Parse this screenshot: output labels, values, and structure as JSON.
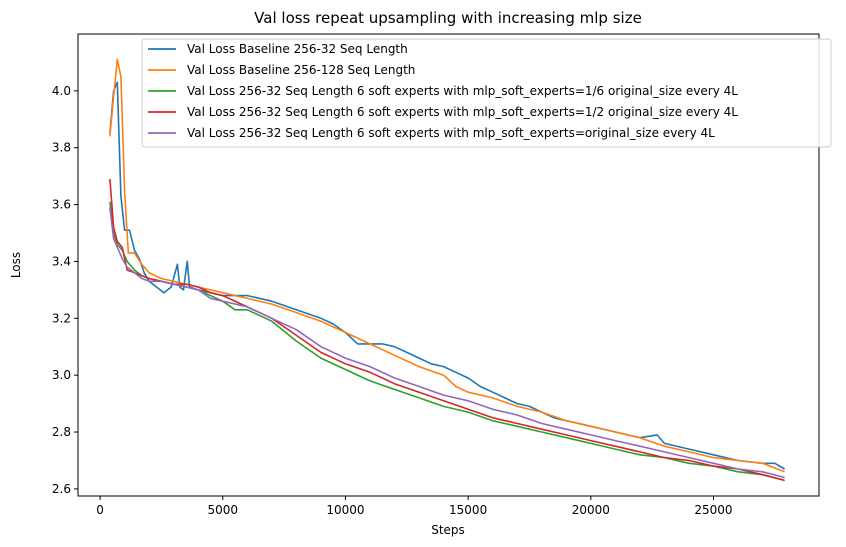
{
  "chart_data": {
    "type": "line",
    "title": "Val loss repeat upsampling with increasing mlp size",
    "xlabel": "Steps",
    "ylabel": "Loss",
    "xlim": [
      -900,
      29300
    ],
    "ylim": [
      2.575,
      4.2
    ],
    "xticks": [
      0,
      5000,
      10000,
      15000,
      20000,
      25000
    ],
    "yticks": [
      2.6,
      2.8,
      3.0,
      3.2,
      3.4,
      3.6,
      3.8,
      4.0
    ],
    "grid": false,
    "legend_position": "upper right",
    "series": [
      {
        "name": "Val Loss Baseline 256-32 Seq Length",
        "color": "#1f77b4",
        "points": [
          [
            400,
            3.85
          ],
          [
            550,
            4.0
          ],
          [
            700,
            4.03
          ],
          [
            850,
            3.63
          ],
          [
            1000,
            3.51
          ],
          [
            1200,
            3.51
          ],
          [
            1400,
            3.44
          ],
          [
            1600,
            3.41
          ],
          [
            1800,
            3.36
          ],
          [
            2000,
            3.33
          ],
          [
            2300,
            3.31
          ],
          [
            2600,
            3.29
          ],
          [
            2900,
            3.31
          ],
          [
            3150,
            3.39
          ],
          [
            3250,
            3.31
          ],
          [
            3400,
            3.3
          ],
          [
            3550,
            3.4
          ],
          [
            3650,
            3.31
          ],
          [
            4000,
            3.3
          ],
          [
            4500,
            3.29
          ],
          [
            5000,
            3.28
          ],
          [
            6000,
            3.28
          ],
          [
            7000,
            3.26
          ],
          [
            8000,
            3.23
          ],
          [
            9000,
            3.2
          ],
          [
            9500,
            3.18
          ],
          [
            10000,
            3.15
          ],
          [
            10500,
            3.11
          ],
          [
            11000,
            3.11
          ],
          [
            11500,
            3.11
          ],
          [
            12000,
            3.1
          ],
          [
            12500,
            3.08
          ],
          [
            13000,
            3.06
          ],
          [
            13500,
            3.04
          ],
          [
            14000,
            3.03
          ],
          [
            14500,
            3.01
          ],
          [
            15000,
            2.99
          ],
          [
            15500,
            2.96
          ],
          [
            16000,
            2.94
          ],
          [
            16500,
            2.92
          ],
          [
            17000,
            2.9
          ],
          [
            17500,
            2.89
          ],
          [
            18000,
            2.87
          ],
          [
            18500,
            2.85
          ],
          [
            19000,
            2.84
          ],
          [
            19500,
            2.83
          ],
          [
            20000,
            2.82
          ],
          [
            21000,
            2.8
          ],
          [
            22000,
            2.78
          ],
          [
            22700,
            2.79
          ],
          [
            23000,
            2.76
          ],
          [
            24000,
            2.74
          ],
          [
            25000,
            2.72
          ],
          [
            26000,
            2.7
          ],
          [
            27000,
            2.69
          ],
          [
            27500,
            2.69
          ],
          [
            27900,
            2.67
          ]
        ]
      },
      {
        "name": "Val Loss Baseline 256-128 Seq Length",
        "color": "#ff7f0e",
        "points": [
          [
            400,
            3.84
          ],
          [
            550,
            3.98
          ],
          [
            700,
            4.11
          ],
          [
            850,
            4.05
          ],
          [
            1000,
            3.65
          ],
          [
            1150,
            3.43
          ],
          [
            1400,
            3.43
          ],
          [
            1700,
            3.39
          ],
          [
            2000,
            3.36
          ],
          [
            2500,
            3.34
          ],
          [
            3000,
            3.33
          ],
          [
            3500,
            3.32
          ],
          [
            4000,
            3.31
          ],
          [
            4500,
            3.3
          ],
          [
            5000,
            3.29
          ],
          [
            6000,
            3.27
          ],
          [
            7000,
            3.25
          ],
          [
            8000,
            3.22
          ],
          [
            9000,
            3.19
          ],
          [
            10000,
            3.15
          ],
          [
            11000,
            3.11
          ],
          [
            12000,
            3.07
          ],
          [
            13000,
            3.03
          ],
          [
            14000,
            3.0
          ],
          [
            14500,
            2.96
          ],
          [
            15000,
            2.94
          ],
          [
            16000,
            2.92
          ],
          [
            17000,
            2.89
          ],
          [
            18000,
            2.87
          ],
          [
            19000,
            2.84
          ],
          [
            20000,
            2.82
          ],
          [
            21000,
            2.8
          ],
          [
            22000,
            2.78
          ],
          [
            23000,
            2.75
          ],
          [
            24000,
            2.73
          ],
          [
            25000,
            2.71
          ],
          [
            26000,
            2.7
          ],
          [
            27000,
            2.69
          ],
          [
            27900,
            2.66
          ]
        ]
      },
      {
        "name": "Val Loss 256-32 Seq Length 6 soft experts with mlp_soft_experts=1/6 original_size every 4L",
        "color": "#2ca02c",
        "points": [
          [
            400,
            3.61
          ],
          [
            550,
            3.5
          ],
          [
            700,
            3.46
          ],
          [
            900,
            3.44
          ],
          [
            1100,
            3.4
          ],
          [
            1400,
            3.37
          ],
          [
            1700,
            3.35
          ],
          [
            2000,
            3.34
          ],
          [
            2500,
            3.33
          ],
          [
            3000,
            3.32
          ],
          [
            3500,
            3.31
          ],
          [
            4000,
            3.3
          ],
          [
            4500,
            3.28
          ],
          [
            5000,
            3.26
          ],
          [
            5500,
            3.23
          ],
          [
            6000,
            3.23
          ],
          [
            7000,
            3.19
          ],
          [
            8000,
            3.12
          ],
          [
            9000,
            3.06
          ],
          [
            10000,
            3.02
          ],
          [
            11000,
            2.98
          ],
          [
            12000,
            2.95
          ],
          [
            13000,
            2.92
          ],
          [
            14000,
            2.89
          ],
          [
            15000,
            2.87
          ],
          [
            16000,
            2.84
          ],
          [
            17000,
            2.82
          ],
          [
            18000,
            2.8
          ],
          [
            19000,
            2.78
          ],
          [
            20000,
            2.76
          ],
          [
            21000,
            2.74
          ],
          [
            22000,
            2.72
          ],
          [
            23000,
            2.71
          ],
          [
            24000,
            2.69
          ],
          [
            25000,
            2.68
          ],
          [
            26000,
            2.66
          ],
          [
            27000,
            2.65
          ],
          [
            27900,
            2.63
          ]
        ]
      },
      {
        "name": "Val Loss 256-32 Seq Length 6 soft experts with mlp_soft_experts=1/2 original_size every 4L",
        "color": "#d62728",
        "points": [
          [
            400,
            3.69
          ],
          [
            550,
            3.52
          ],
          [
            700,
            3.47
          ],
          [
            900,
            3.45
          ],
          [
            1100,
            3.37
          ],
          [
            1400,
            3.36
          ],
          [
            1700,
            3.35
          ],
          [
            2000,
            3.34
          ],
          [
            2500,
            3.33
          ],
          [
            3000,
            3.32
          ],
          [
            3500,
            3.32
          ],
          [
            4000,
            3.31
          ],
          [
            4500,
            3.29
          ],
          [
            5000,
            3.28
          ],
          [
            6000,
            3.24
          ],
          [
            7000,
            3.2
          ],
          [
            8000,
            3.14
          ],
          [
            9000,
            3.08
          ],
          [
            10000,
            3.04
          ],
          [
            11000,
            3.01
          ],
          [
            12000,
            2.97
          ],
          [
            13000,
            2.94
          ],
          [
            14000,
            2.91
          ],
          [
            15000,
            2.88
          ],
          [
            16000,
            2.85
          ],
          [
            17000,
            2.83
          ],
          [
            18000,
            2.81
          ],
          [
            19000,
            2.79
          ],
          [
            20000,
            2.77
          ],
          [
            21000,
            2.75
          ],
          [
            22000,
            2.73
          ],
          [
            23000,
            2.71
          ],
          [
            24000,
            2.7
          ],
          [
            25000,
            2.68
          ],
          [
            26000,
            2.67
          ],
          [
            27000,
            2.65
          ],
          [
            27900,
            2.63
          ]
        ]
      },
      {
        "name": "Val Loss 256-32 Seq Length 6 soft experts with mlp_soft_experts=original_size every 4L",
        "color": "#9467bd",
        "points": [
          [
            400,
            3.59
          ],
          [
            550,
            3.48
          ],
          [
            700,
            3.45
          ],
          [
            900,
            3.41
          ],
          [
            1100,
            3.38
          ],
          [
            1400,
            3.36
          ],
          [
            1700,
            3.34
          ],
          [
            2000,
            3.33
          ],
          [
            2500,
            3.33
          ],
          [
            3000,
            3.32
          ],
          [
            3500,
            3.31
          ],
          [
            4000,
            3.3
          ],
          [
            4500,
            3.27
          ],
          [
            5000,
            3.26
          ],
          [
            6000,
            3.24
          ],
          [
            7000,
            3.2
          ],
          [
            8000,
            3.16
          ],
          [
            9000,
            3.1
          ],
          [
            10000,
            3.06
          ],
          [
            11000,
            3.03
          ],
          [
            12000,
            2.99
          ],
          [
            13000,
            2.96
          ],
          [
            14000,
            2.93
          ],
          [
            15000,
            2.91
          ],
          [
            16000,
            2.88
          ],
          [
            17000,
            2.86
          ],
          [
            18000,
            2.83
          ],
          [
            19000,
            2.81
          ],
          [
            20000,
            2.79
          ],
          [
            21000,
            2.77
          ],
          [
            22000,
            2.75
          ],
          [
            23000,
            2.73
          ],
          [
            24000,
            2.71
          ],
          [
            25000,
            2.69
          ],
          [
            26000,
            2.67
          ],
          [
            27000,
            2.66
          ],
          [
            27900,
            2.64
          ]
        ]
      }
    ]
  }
}
